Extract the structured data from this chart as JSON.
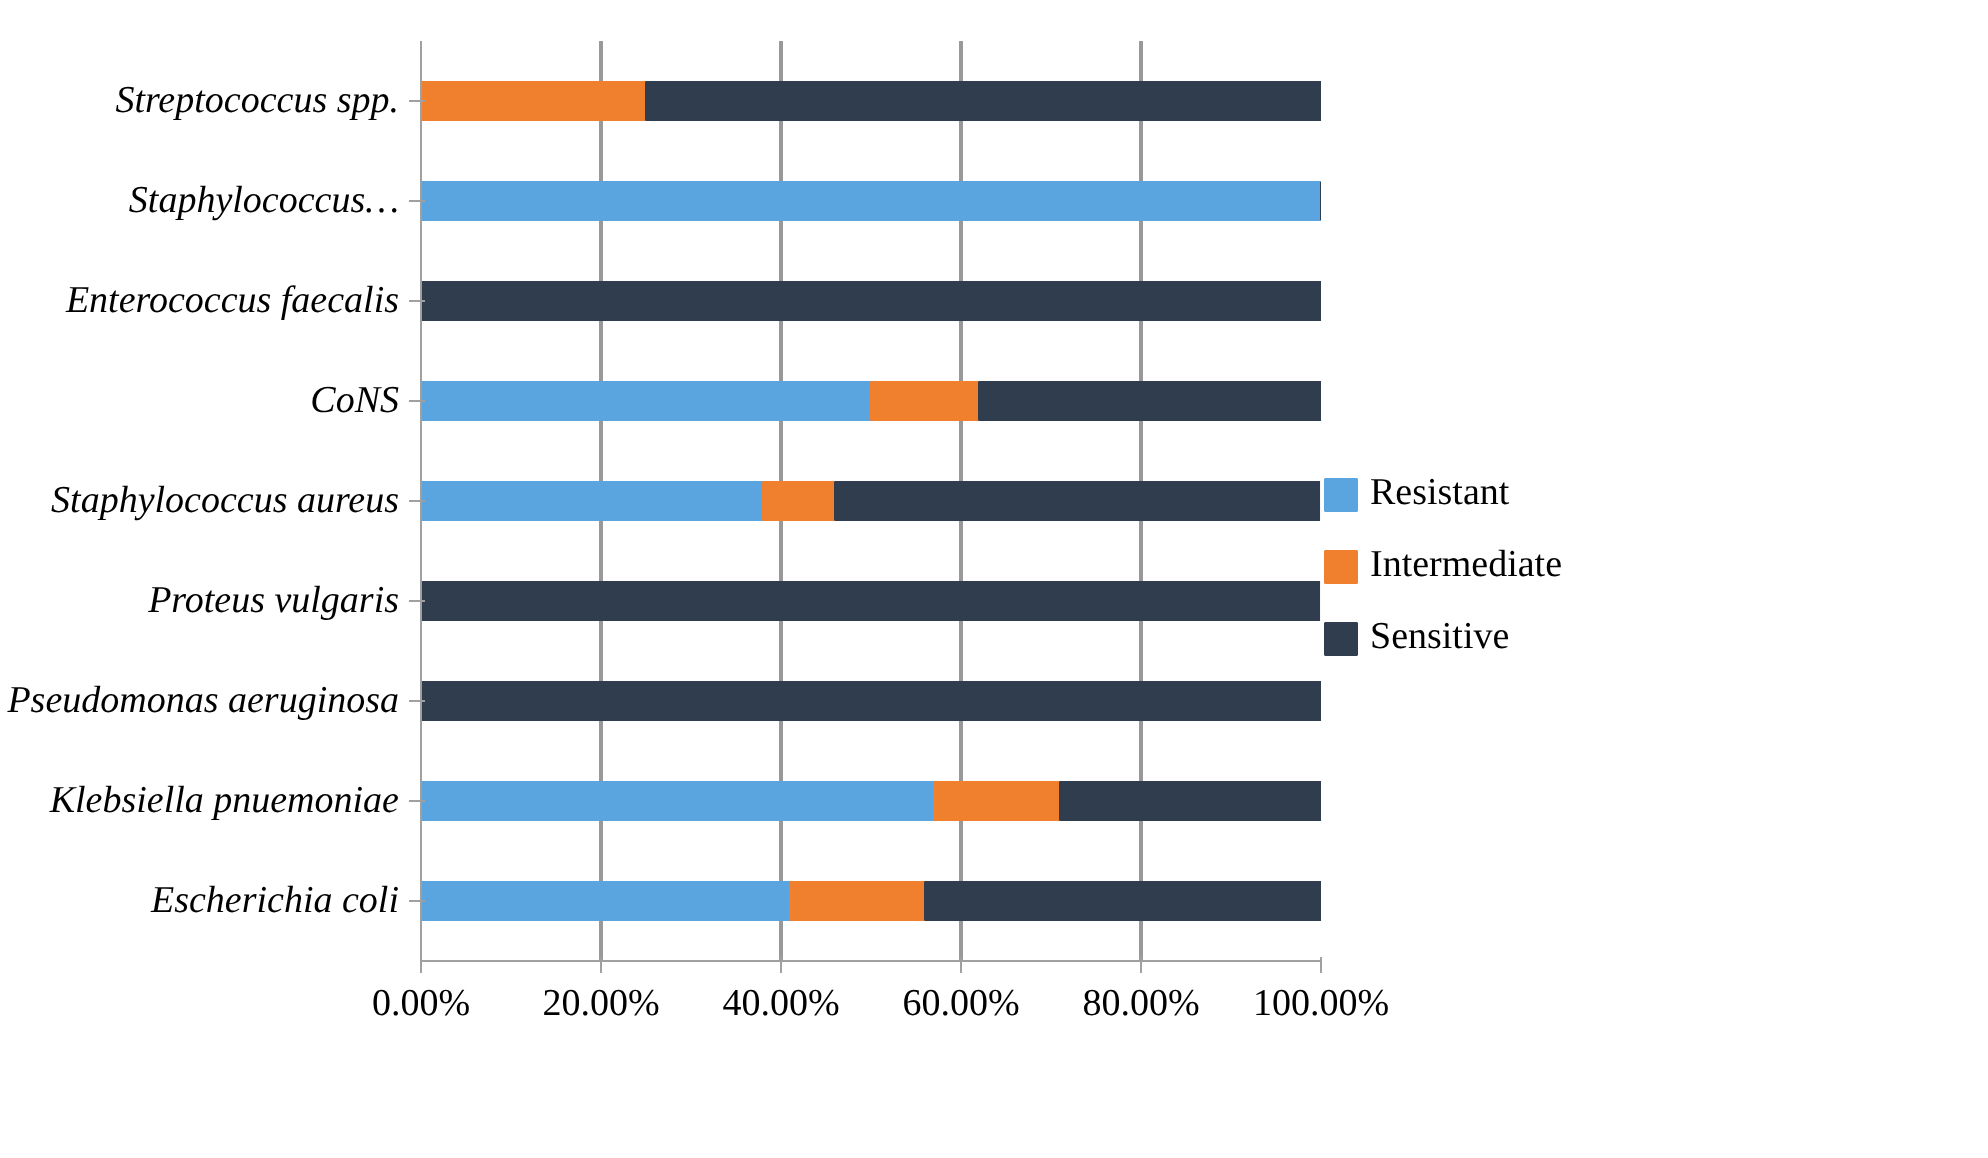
{
  "chart_data": {
    "type": "bar",
    "orientation": "horizontal",
    "stacked": true,
    "categories": [
      "Streptococcus spp.",
      "Staphylococcus…",
      "Enterococcus faecalis",
      "CoNS",
      "Staphylococcus aureus",
      "Proteus vulgaris",
      "Pseudomonas aeruginosa",
      "Klebsiella pnuemoniae",
      "Escherichia coli"
    ],
    "series": [
      {
        "name": "Resistant",
        "color": "#5aa5e0",
        "values": [
          0,
          100,
          0,
          50,
          38,
          0,
          0,
          57,
          41
        ]
      },
      {
        "name": "Intermediate",
        "color": "#f07f2e",
        "values": [
          25,
          0,
          0,
          12,
          8,
          0,
          0,
          14,
          15
        ]
      },
      {
        "name": "Sensitive",
        "color": "#2f3d4f",
        "values": [
          75,
          0,
          100,
          38,
          54,
          100,
          100,
          29,
          44
        ]
      }
    ],
    "xlim": [
      0,
      100
    ],
    "xticks": [
      {
        "value": 0,
        "label": "0.00%"
      },
      {
        "value": 20,
        "label": "20.00%"
      },
      {
        "value": 40,
        "label": "40.00%"
      },
      {
        "value": 60,
        "label": "60.00%"
      },
      {
        "value": 80,
        "label": "80.00%"
      },
      {
        "value": 100,
        "label": "100.00%"
      }
    ],
    "grid": "x",
    "legend": "right"
  }
}
